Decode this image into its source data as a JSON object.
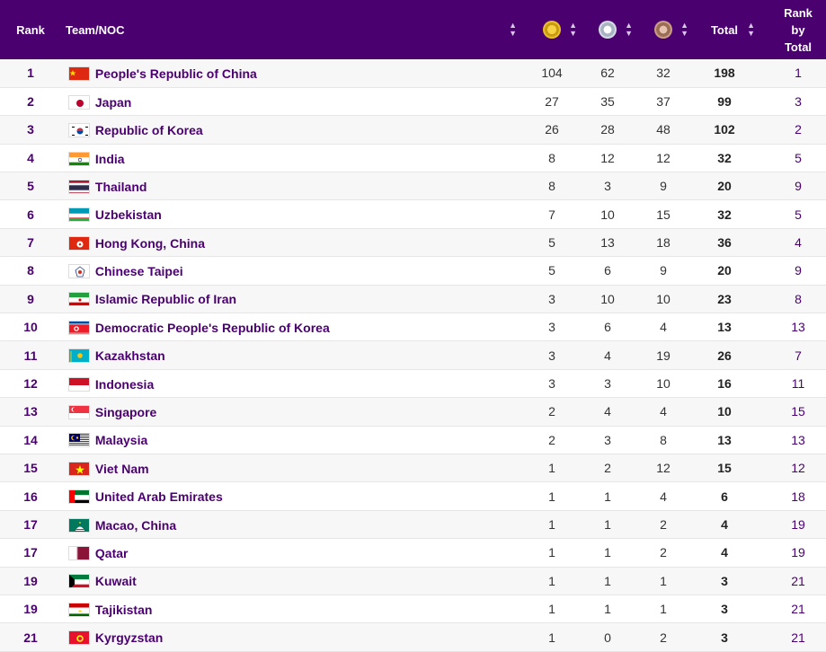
{
  "header": {
    "rank": "Rank",
    "team": "Team/NOC",
    "gold_icon": "gold-medal-icon",
    "silver_icon": "silver-medal-icon",
    "bronze_icon": "bronze-medal-icon",
    "total": "Total",
    "rank_by_total_1": "Rank",
    "rank_by_total_2": "by",
    "rank_by_total_3": "Total",
    "sort_icon": "sort-arrows-icon"
  },
  "rows": [
    {
      "rank": "1",
      "team": "People's Republic of China",
      "gold": "104",
      "silver": "62",
      "bronze": "32",
      "total": "198",
      "rbt": "1",
      "flag": "china-flag",
      "flag_colors": [
        "#de2910",
        "#ffde00"
      ]
    },
    {
      "rank": "2",
      "team": "Japan",
      "gold": "27",
      "silver": "35",
      "bronze": "37",
      "total": "99",
      "rbt": "3",
      "flag": "japan-flag",
      "flag_colors": [
        "#ffffff",
        "#bc002d"
      ]
    },
    {
      "rank": "3",
      "team": "Republic of Korea",
      "gold": "26",
      "silver": "28",
      "bronze": "48",
      "total": "102",
      "rbt": "2",
      "flag": "korea-flag",
      "flag_colors": [
        "#ffffff",
        "#cd2e3a",
        "#0047a0"
      ]
    },
    {
      "rank": "4",
      "team": "India",
      "gold": "8",
      "silver": "12",
      "bronze": "12",
      "total": "32",
      "rbt": "5",
      "flag": "india-flag",
      "flag_colors": [
        "#ff9933",
        "#ffffff",
        "#138808"
      ]
    },
    {
      "rank": "5",
      "team": "Thailand",
      "gold": "8",
      "silver": "3",
      "bronze": "9",
      "total": "20",
      "rbt": "9",
      "flag": "thailand-flag",
      "flag_colors": [
        "#a51931",
        "#f4f5f8",
        "#2d2a4a"
      ]
    },
    {
      "rank": "6",
      "team": "Uzbekistan",
      "gold": "7",
      "silver": "10",
      "bronze": "15",
      "total": "32",
      "rbt": "5",
      "flag": "uzbekistan-flag",
      "flag_colors": [
        "#0099b5",
        "#ffffff",
        "#1eb53a"
      ]
    },
    {
      "rank": "7",
      "team": "Hong Kong, China",
      "gold": "5",
      "silver": "13",
      "bronze": "18",
      "total": "36",
      "rbt": "4",
      "flag": "hong-kong-flag",
      "flag_colors": [
        "#de2910",
        "#ffffff"
      ]
    },
    {
      "rank": "8",
      "team": "Chinese Taipei",
      "gold": "5",
      "silver": "6",
      "bronze": "9",
      "total": "20",
      "rbt": "9",
      "flag": "chinese-taipei-flag",
      "flag_colors": [
        "#ffffff",
        "#2a3a8a",
        "#d52b1e"
      ]
    },
    {
      "rank": "9",
      "team": "Islamic Republic of Iran",
      "gold": "3",
      "silver": "10",
      "bronze": "10",
      "total": "23",
      "rbt": "8",
      "flag": "iran-flag",
      "flag_colors": [
        "#239f40",
        "#ffffff",
        "#da0000"
      ]
    },
    {
      "rank": "10",
      "team": "Democratic People's Republic of Korea",
      "gold": "3",
      "silver": "6",
      "bronze": "4",
      "total": "13",
      "rbt": "13",
      "flag": "dprk-flag",
      "flag_colors": [
        "#024fa2",
        "#ed1c27",
        "#ffffff"
      ]
    },
    {
      "rank": "11",
      "team": "Kazakhstan",
      "gold": "3",
      "silver": "4",
      "bronze": "19",
      "total": "26",
      "rbt": "7",
      "flag": "kazakhstan-flag",
      "flag_colors": [
        "#00afca",
        "#fec50c"
      ]
    },
    {
      "rank": "12",
      "team": "Indonesia",
      "gold": "3",
      "silver": "3",
      "bronze": "10",
      "total": "16",
      "rbt": "11",
      "flag": "indonesia-flag",
      "flag_colors": [
        "#ce1126",
        "#ffffff"
      ]
    },
    {
      "rank": "13",
      "team": "Singapore",
      "gold": "2",
      "silver": "4",
      "bronze": "4",
      "total": "10",
      "rbt": "15",
      "flag": "singapore-flag",
      "flag_colors": [
        "#ef3340",
        "#ffffff"
      ]
    },
    {
      "rank": "14",
      "team": "Malaysia",
      "gold": "2",
      "silver": "3",
      "bronze": "8",
      "total": "13",
      "rbt": "13",
      "flag": "malaysia-flag",
      "flag_colors": [
        "#cc0001",
        "#ffffff",
        "#010066",
        "#ffcc00"
      ]
    },
    {
      "rank": "15",
      "team": "Viet Nam",
      "gold": "1",
      "silver": "2",
      "bronze": "12",
      "total": "15",
      "rbt": "12",
      "flag": "vietnam-flag",
      "flag_colors": [
        "#da251d",
        "#ffff00"
      ]
    },
    {
      "rank": "16",
      "team": "United Arab Emirates",
      "gold": "1",
      "silver": "1",
      "bronze": "4",
      "total": "6",
      "rbt": "18",
      "flag": "uae-flag",
      "flag_colors": [
        "#ff0000",
        "#00732f",
        "#ffffff",
        "#000000"
      ]
    },
    {
      "rank": "17",
      "team": "Macao, China",
      "gold": "1",
      "silver": "1",
      "bronze": "2",
      "total": "4",
      "rbt": "19",
      "flag": "macao-flag",
      "flag_colors": [
        "#00785e",
        "#ffffff"
      ]
    },
    {
      "rank": "17",
      "team": "Qatar",
      "gold": "1",
      "silver": "1",
      "bronze": "2",
      "total": "4",
      "rbt": "19",
      "flag": "qatar-flag",
      "flag_colors": [
        "#8a1538",
        "#ffffff"
      ]
    },
    {
      "rank": "19",
      "team": "Kuwait",
      "gold": "1",
      "silver": "1",
      "bronze": "1",
      "total": "3",
      "rbt": "21",
      "flag": "kuwait-flag",
      "flag_colors": [
        "#007a3d",
        "#ffffff",
        "#ce1126",
        "#000000"
      ]
    },
    {
      "rank": "19",
      "team": "Tajikistan",
      "gold": "1",
      "silver": "1",
      "bronze": "1",
      "total": "3",
      "rbt": "21",
      "flag": "tajikistan-flag",
      "flag_colors": [
        "#cc0000",
        "#ffffff",
        "#006600"
      ]
    },
    {
      "rank": "21",
      "team": "Kyrgyzstan",
      "gold": "1",
      "silver": "0",
      "bronze": "2",
      "total": "3",
      "rbt": "21",
      "flag": "kyrgyzstan-flag",
      "flag_colors": [
        "#e8112d",
        "#ffef00"
      ]
    }
  ],
  "colors": {
    "header_bg": "#4b0070",
    "accent_text": "#4b0070"
  }
}
